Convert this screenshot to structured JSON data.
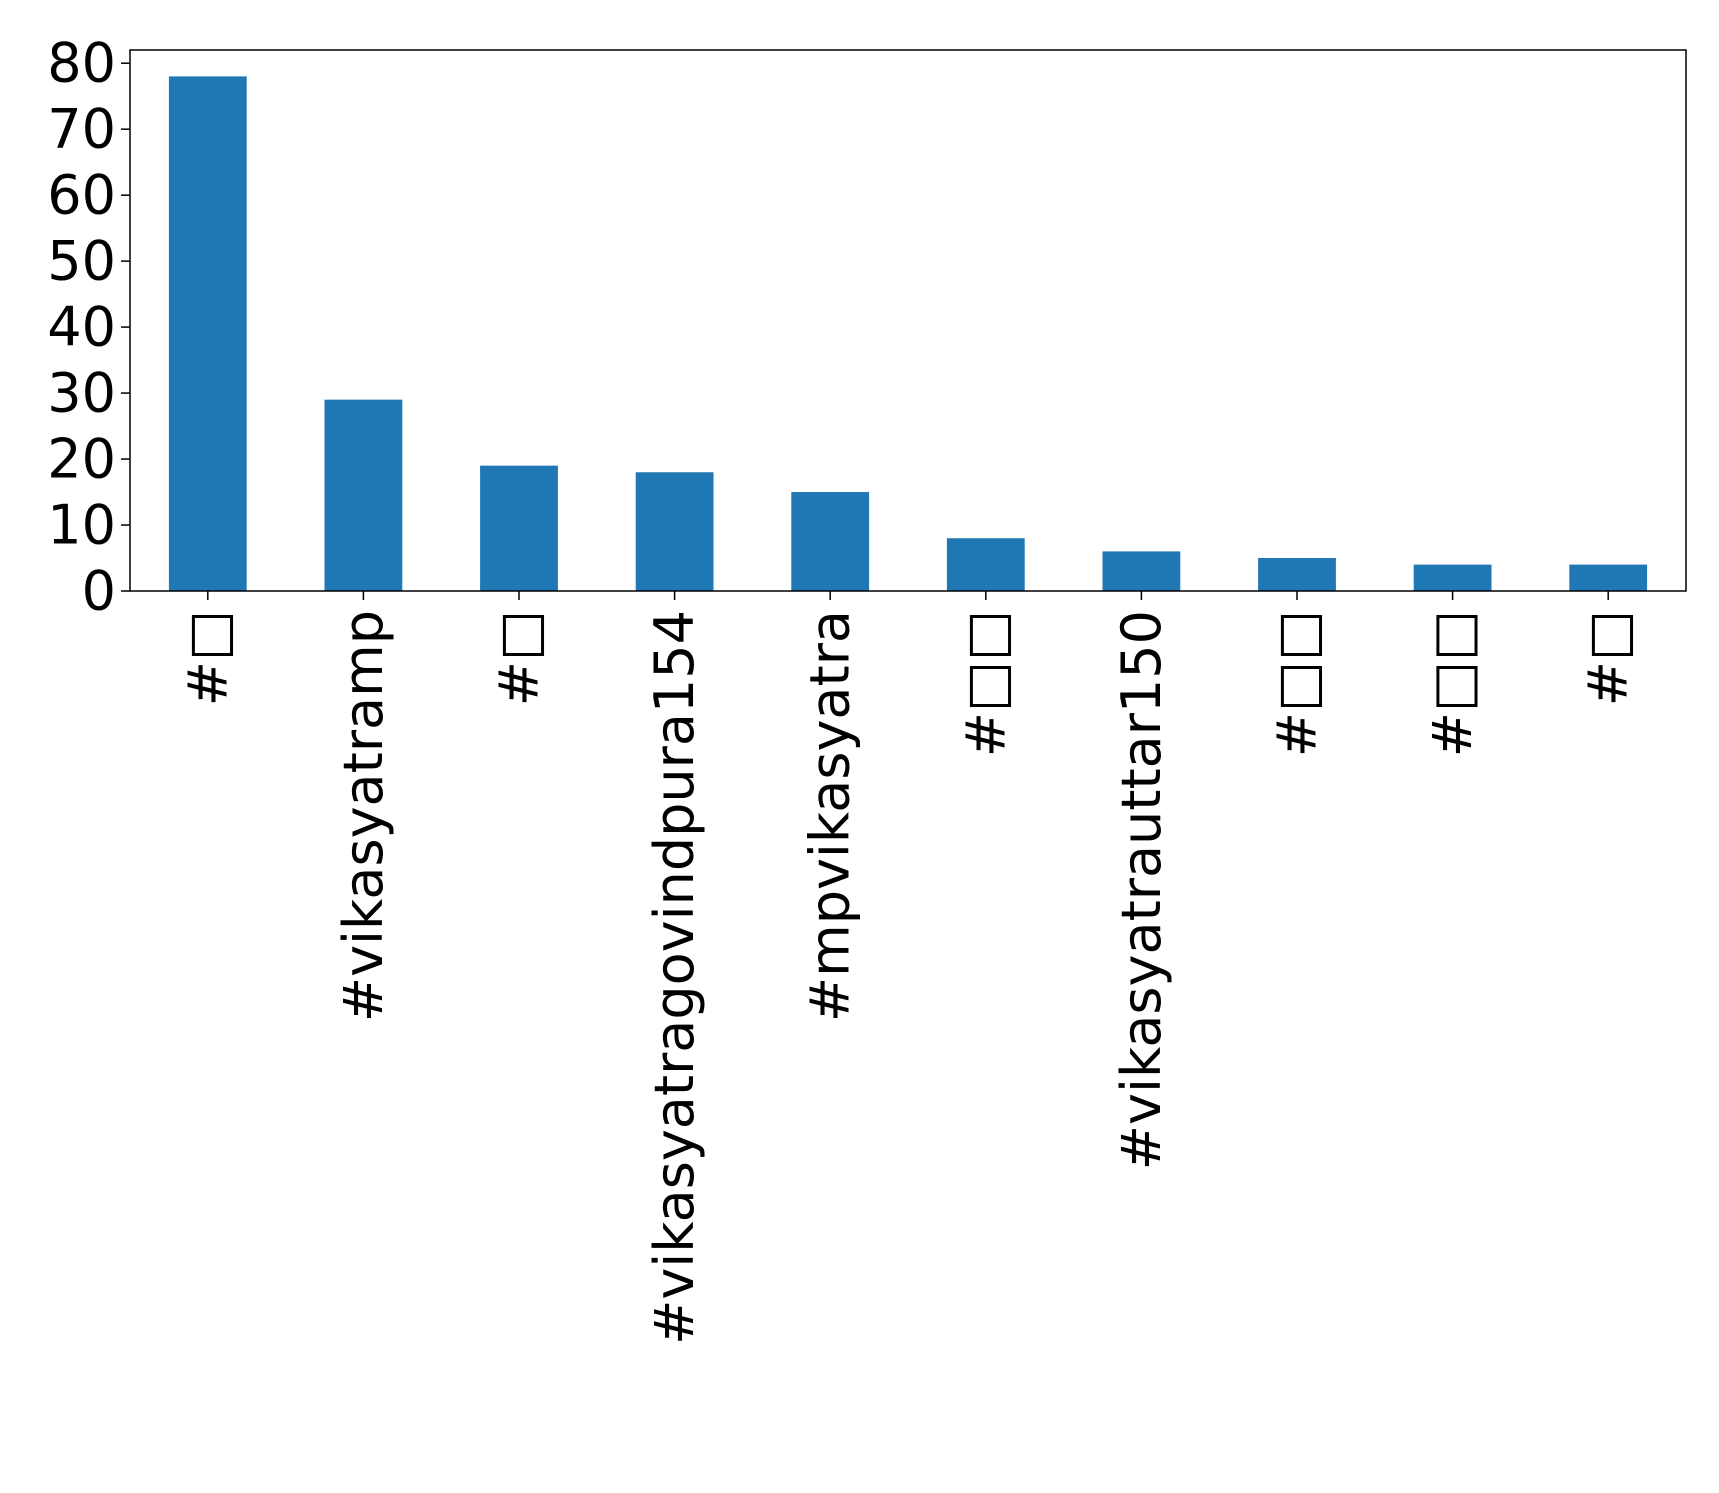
{
  "chart_data": {
    "type": "bar",
    "categories": [
      "#□",
      "#vikasyatramp",
      "#□",
      "#vikasyatragovindpura154",
      "#mpvikasyatra",
      "#□□",
      "#vikasyatrauttar150",
      "#□□",
      "#□□",
      "#□"
    ],
    "values": [
      78,
      29,
      19,
      18,
      15,
      8,
      6,
      5,
      4,
      4
    ],
    "ylim": [
      0,
      82
    ],
    "yticks": [
      0,
      10,
      20,
      30,
      40,
      50,
      60,
      70,
      80
    ],
    "bar_color": "#1f77b4",
    "grid": false,
    "legend": "none"
  }
}
